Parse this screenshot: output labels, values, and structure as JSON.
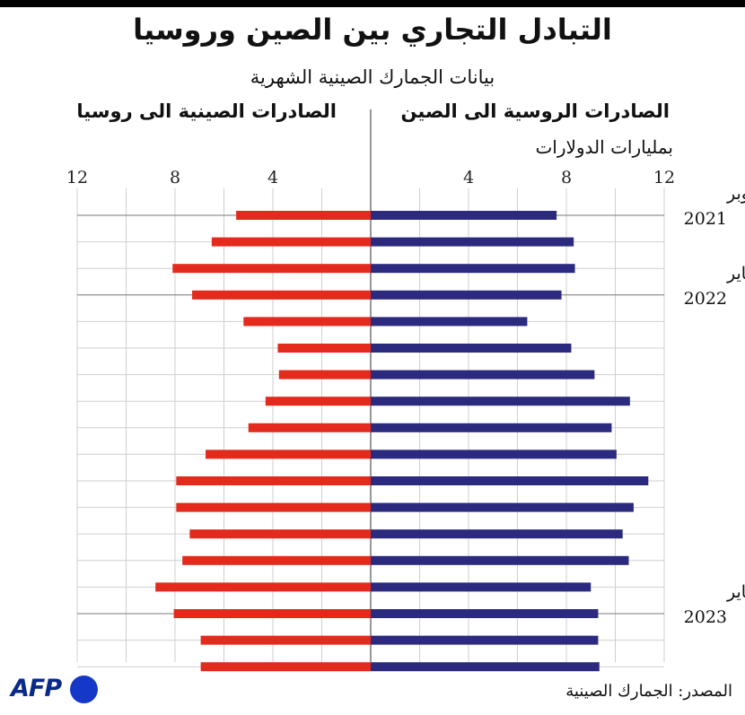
{
  "title": "التبادل التجاري بين الصين وروسيا",
  "subtitle": "بيانات الجمارك الصينية الشهرية",
  "source": "المصدر: الجمارك الصينية",
  "logo": "AFP",
  "colors": {
    "russian_exports": "#2b2a7e",
    "chinese_exports": "#e32a1c",
    "grid": "#cfcfcf",
    "axis": "#555555"
  },
  "chart_data": {
    "type": "bar",
    "orientation": "horizontal-butterfly",
    "unit_label": "بمليارات الدولارات",
    "xlim": [
      0,
      12
    ],
    "ticks": [
      4,
      8,
      12
    ],
    "tick_labels": [
      "4",
      "8",
      "12"
    ],
    "categories": [
      "2021-10",
      "2021-11",
      "2021-12",
      "2022-01",
      "2022-02",
      "2022-03",
      "2022-04",
      "2022-05",
      "2022-06",
      "2022-07",
      "2022-08",
      "2022-09",
      "2022-10",
      "2022-11",
      "2022-12",
      "2023-01",
      "2023-02",
      "2023-03"
    ],
    "category_labels": [
      {
        "index": 0,
        "month": "أكتوبر",
        "year": "2021"
      },
      {
        "index": 3,
        "month": "يناير",
        "year": "2022"
      },
      {
        "index": 15,
        "month": "يناير",
        "year": "2023"
      }
    ],
    "year_divider_after_indices": [
      0,
      3,
      15
    ],
    "series": [
      {
        "name": "الصادرات الروسية الى الصين",
        "side": "right",
        "values": [
          7.6,
          8.3,
          8.35,
          7.8,
          6.4,
          8.2,
          9.15,
          10.6,
          9.85,
          10.05,
          11.35,
          10.75,
          10.3,
          10.55,
          9.0,
          9.3,
          9.3,
          9.35
        ]
      },
      {
        "name": "الصادرات الصينية الى روسيا",
        "side": "left",
        "values": [
          5.5,
          6.5,
          8.1,
          7.3,
          5.2,
          3.8,
          3.75,
          4.3,
          5.0,
          6.75,
          7.95,
          7.95,
          7.4,
          7.7,
          8.8,
          8.05,
          6.95,
          6.95
        ]
      }
    ]
  }
}
